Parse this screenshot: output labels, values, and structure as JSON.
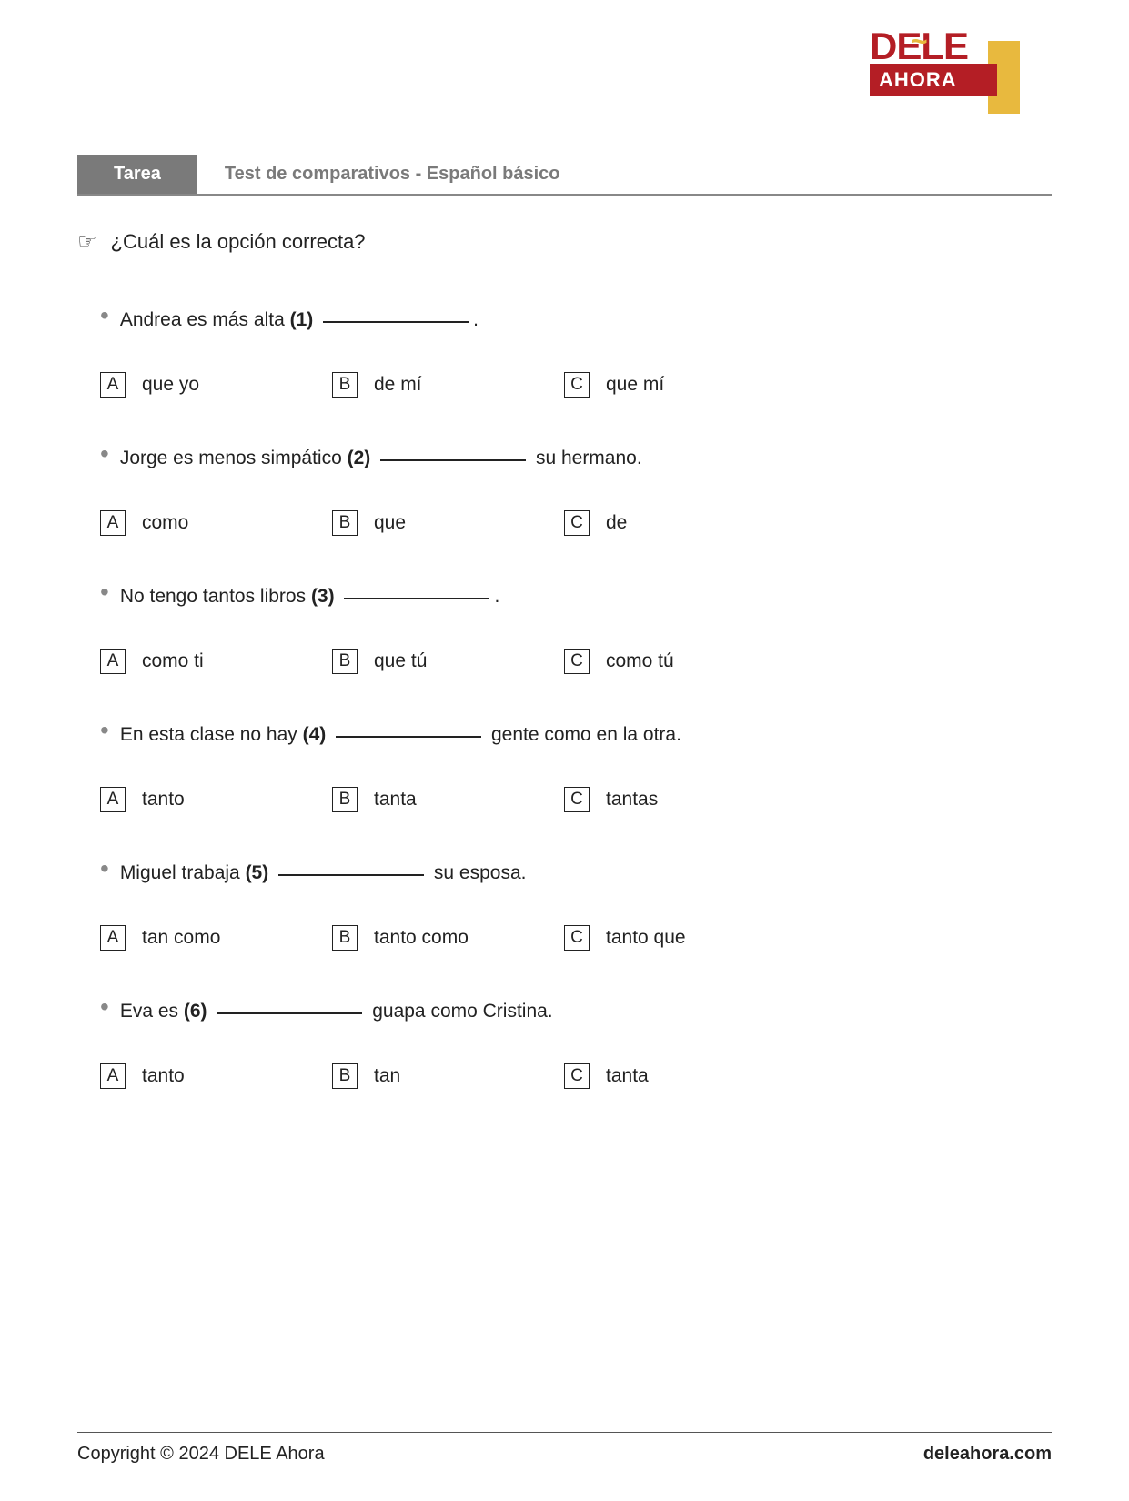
{
  "logo": {
    "line1": "DELE",
    "line2": "AHORA"
  },
  "header": {
    "tab": "Tarea",
    "title": "Test de comparativos - Español básico"
  },
  "instruction": "¿Cuál es la opción correcta?",
  "questions": [
    {
      "before": "Andrea es más alta ",
      "num": "(1)",
      "after": ".",
      "options": {
        "A": "que yo",
        "B": "de mí",
        "C": "que mí"
      }
    },
    {
      "before": "Jorge es menos simpático ",
      "num": "(2)",
      "after": " su hermano.",
      "options": {
        "A": "como",
        "B": "que",
        "C": "de"
      }
    },
    {
      "before": "No tengo tantos libros ",
      "num": "(3)",
      "after": ".",
      "options": {
        "A": "como ti",
        "B": "que tú",
        "C": "como tú"
      }
    },
    {
      "before": "En esta clase no hay ",
      "num": "(4)",
      "after": " gente como en la otra.",
      "options": {
        "A": "tanto",
        "B": "tanta",
        "C": "tantas"
      }
    },
    {
      "before": "Miguel trabaja ",
      "num": "(5)",
      "after": " su esposa.",
      "options": {
        "A": "tan como",
        "B": "tanto como",
        "C": "tanto que"
      }
    },
    {
      "before": "Eva es ",
      "num": "(6)",
      "after": " guapa como Cristina.",
      "options": {
        "A": "tanto",
        "B": "tan",
        "C": "tanta"
      }
    }
  ],
  "optionLabels": {
    "A": "A",
    "B": "B",
    "C": "C"
  },
  "footer": {
    "left": "Copyright © 2024 DELE Ahora",
    "right": "deleahora.com"
  }
}
